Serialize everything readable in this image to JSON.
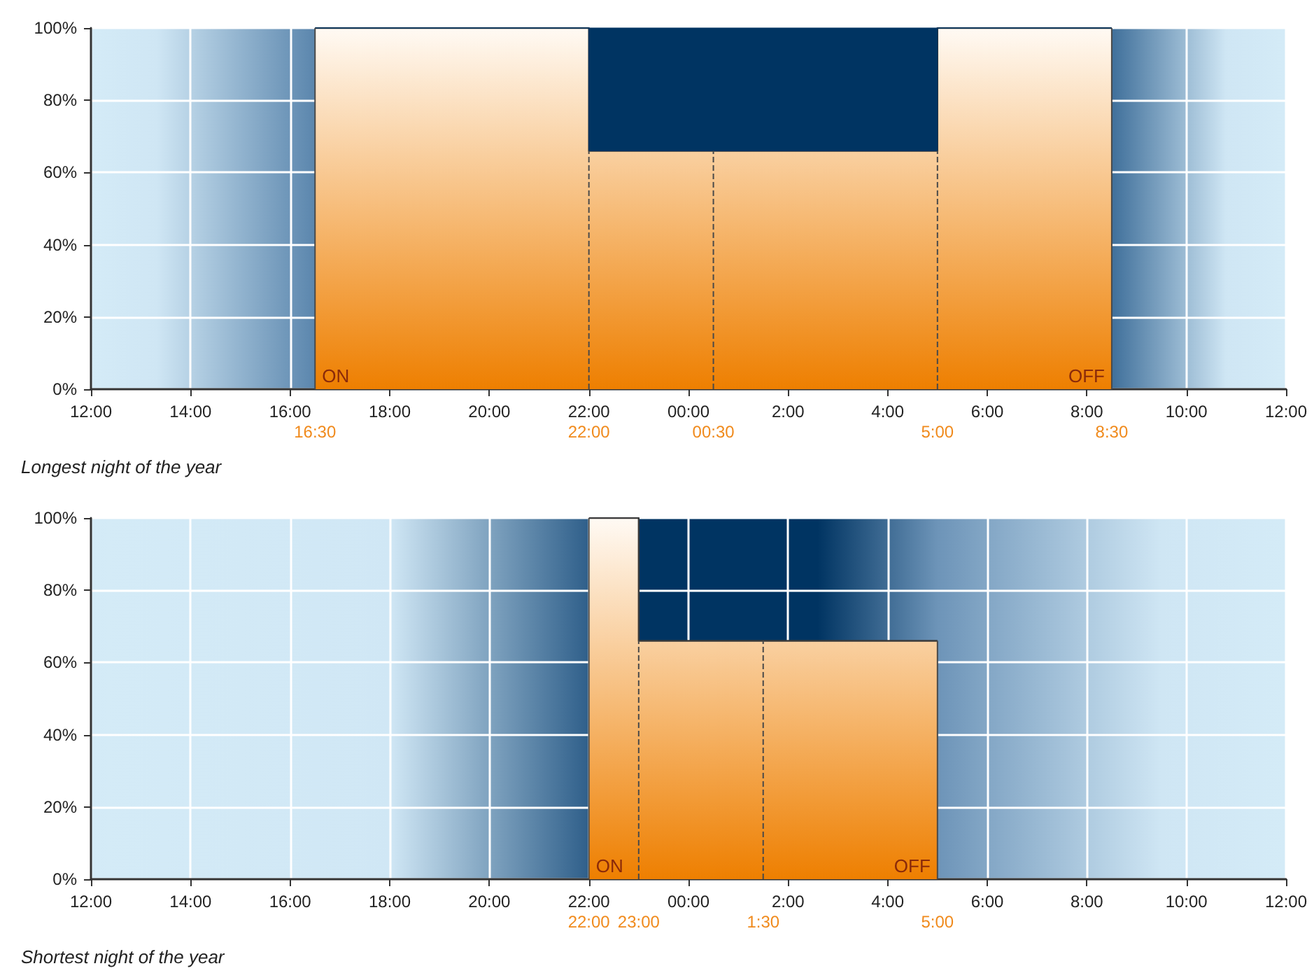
{
  "chart_data": [
    {
      "type": "area",
      "title": "Longest night of the year",
      "stacked": true,
      "x": [
        "2000-12-21T16:30",
        "2000-12-21T22:00",
        "2000-12-21T22:00",
        "2000-12-22T05:00",
        "2000-12-22T05:00",
        "2000-12-22T08:30"
      ],
      "series": [
        {
          "color": "#ee7f00",
          "values": [
            100,
            100,
            66,
            66,
            100,
            100
          ]
        },
        {
          "color": "#003462",
          "values": [
            0,
            0,
            34,
            34,
            0,
            0
          ]
        }
      ],
      "xlim": [
        "2000-12-21T12:00",
        "2000-12-22T12:00"
      ],
      "xticks": [
        {
          "value": "2000-12-21T12:00",
          "label": "12:00"
        },
        {
          "value": "2000-12-21T14:00",
          "label": "14:00"
        },
        {
          "value": "2000-12-21T16:00",
          "label": "16:00"
        },
        {
          "value": "2000-12-21T18:00",
          "label": "18:00"
        },
        {
          "value": "2000-12-21T20:00",
          "label": "20:00"
        },
        {
          "value": "2000-12-21T22:00",
          "label": "22:00"
        },
        {
          "value": "2000-12-22T00:00",
          "label": "00:00"
        },
        {
          "value": "2000-12-22T02:00",
          "label": "2:00"
        },
        {
          "value": "2000-12-22T04:00",
          "label": "4:00"
        },
        {
          "value": "2000-12-22T06:00",
          "label": "6:00"
        },
        {
          "value": "2000-12-22T08:00",
          "label": "8:00"
        },
        {
          "value": "2000-12-22T10:00",
          "label": "10:00"
        },
        {
          "value": "2000-12-22T12:00",
          "label": "12:00"
        }
      ],
      "ylim": [
        0,
        100
      ],
      "yticks": [
        {
          "value": 0,
          "label": "0%"
        },
        {
          "value": 20,
          "label": "20%"
        },
        {
          "value": 40,
          "label": "40%"
        },
        {
          "value": 60,
          "label": "60%"
        },
        {
          "value": 80,
          "label": "80%"
        },
        {
          "value": 100,
          "label": "100%"
        }
      ],
      "grid": true,
      "ref_lines": [
        {
          "axis": "x",
          "value": "2000-12-21T16:30",
          "label": "16:30",
          "line_style": "solid"
        },
        {
          "axis": "x",
          "value": "2000-12-21T22:00",
          "label": "22:00",
          "line_style": "dashed"
        },
        {
          "axis": "x",
          "value": "2000-12-22T00:30",
          "label": "00:30",
          "line_style": "dashed"
        },
        {
          "axis": "x",
          "value": "2000-12-22T05:00",
          "label": "5:00",
          "line_style": "dashed"
        },
        {
          "axis": "x",
          "value": "2000-12-22T08:30",
          "label": "8:30",
          "line_style": "solid"
        }
      ],
      "annotations": [
        {
          "text": "ON",
          "x": "2000-12-21T16:30",
          "y": 0
        },
        {
          "text": "OFF",
          "x": "2000-12-22T08:30",
          "y": 0
        }
      ]
    },
    {
      "type": "area",
      "title": "Shortest night of the year",
      "x": [
        "2000-06-21T22:00",
        "2000-06-21T23:00",
        "2000-06-21T23:00",
        "2000-06-22T05:00"
      ],
      "series": [
        {
          "color": "#ee7f00",
          "values": [
            100,
            100,
            66,
            66
          ]
        }
      ],
      "xlim": [
        "2000-06-21T12:00",
        "2000-06-22T12:00"
      ],
      "xticks": [
        {
          "value": "2000-06-21T12:00",
          "label": "12:00"
        },
        {
          "value": "2000-06-21T14:00",
          "label": "14:00"
        },
        {
          "value": "2000-06-21T16:00",
          "label": "16:00"
        },
        {
          "value": "2000-06-21T18:00",
          "label": "18:00"
        },
        {
          "value": "2000-06-21T20:00",
          "label": "20:00"
        },
        {
          "value": "2000-06-21T22:00",
          "label": "22:00"
        },
        {
          "value": "2000-06-22T00:00",
          "label": "00:00"
        },
        {
          "value": "2000-06-22T02:00",
          "label": "2:00"
        },
        {
          "value": "2000-06-22T04:00",
          "label": "4:00"
        },
        {
          "value": "2000-06-22T06:00",
          "label": "6:00"
        },
        {
          "value": "2000-06-22T08:00",
          "label": "8:00"
        },
        {
          "value": "2000-06-22T10:00",
          "label": "10:00"
        },
        {
          "value": "2000-06-22T12:00",
          "label": "12:00"
        }
      ],
      "ylim": [
        0,
        100
      ],
      "yticks": [
        {
          "value": 0,
          "label": "0%"
        },
        {
          "value": 20,
          "label": "20%"
        },
        {
          "value": 40,
          "label": "40%"
        },
        {
          "value": 60,
          "label": "60%"
        },
        {
          "value": 80,
          "label": "80%"
        },
        {
          "value": 100,
          "label": "100%"
        }
      ],
      "grid": true,
      "ref_lines": [
        {
          "axis": "x",
          "value": "2000-06-21T22:00",
          "label": "22:00",
          "line_style": "solid"
        },
        {
          "axis": "x",
          "value": "2000-06-21T23:00",
          "label": "23:00",
          "line_style": "dashed"
        },
        {
          "axis": "x",
          "value": "2000-06-22T01:30",
          "label": "1:30",
          "line_style": "dashed"
        },
        {
          "axis": "x",
          "value": "2000-06-22T05:00",
          "label": "5:00",
          "line_style": "solid"
        }
      ],
      "annotations": [
        {
          "text": "ON",
          "x": "2000-06-21T22:00",
          "y": 0
        },
        {
          "text": "OFF",
          "x": "2000-06-22T05:00",
          "y": 0
        }
      ]
    }
  ]
}
